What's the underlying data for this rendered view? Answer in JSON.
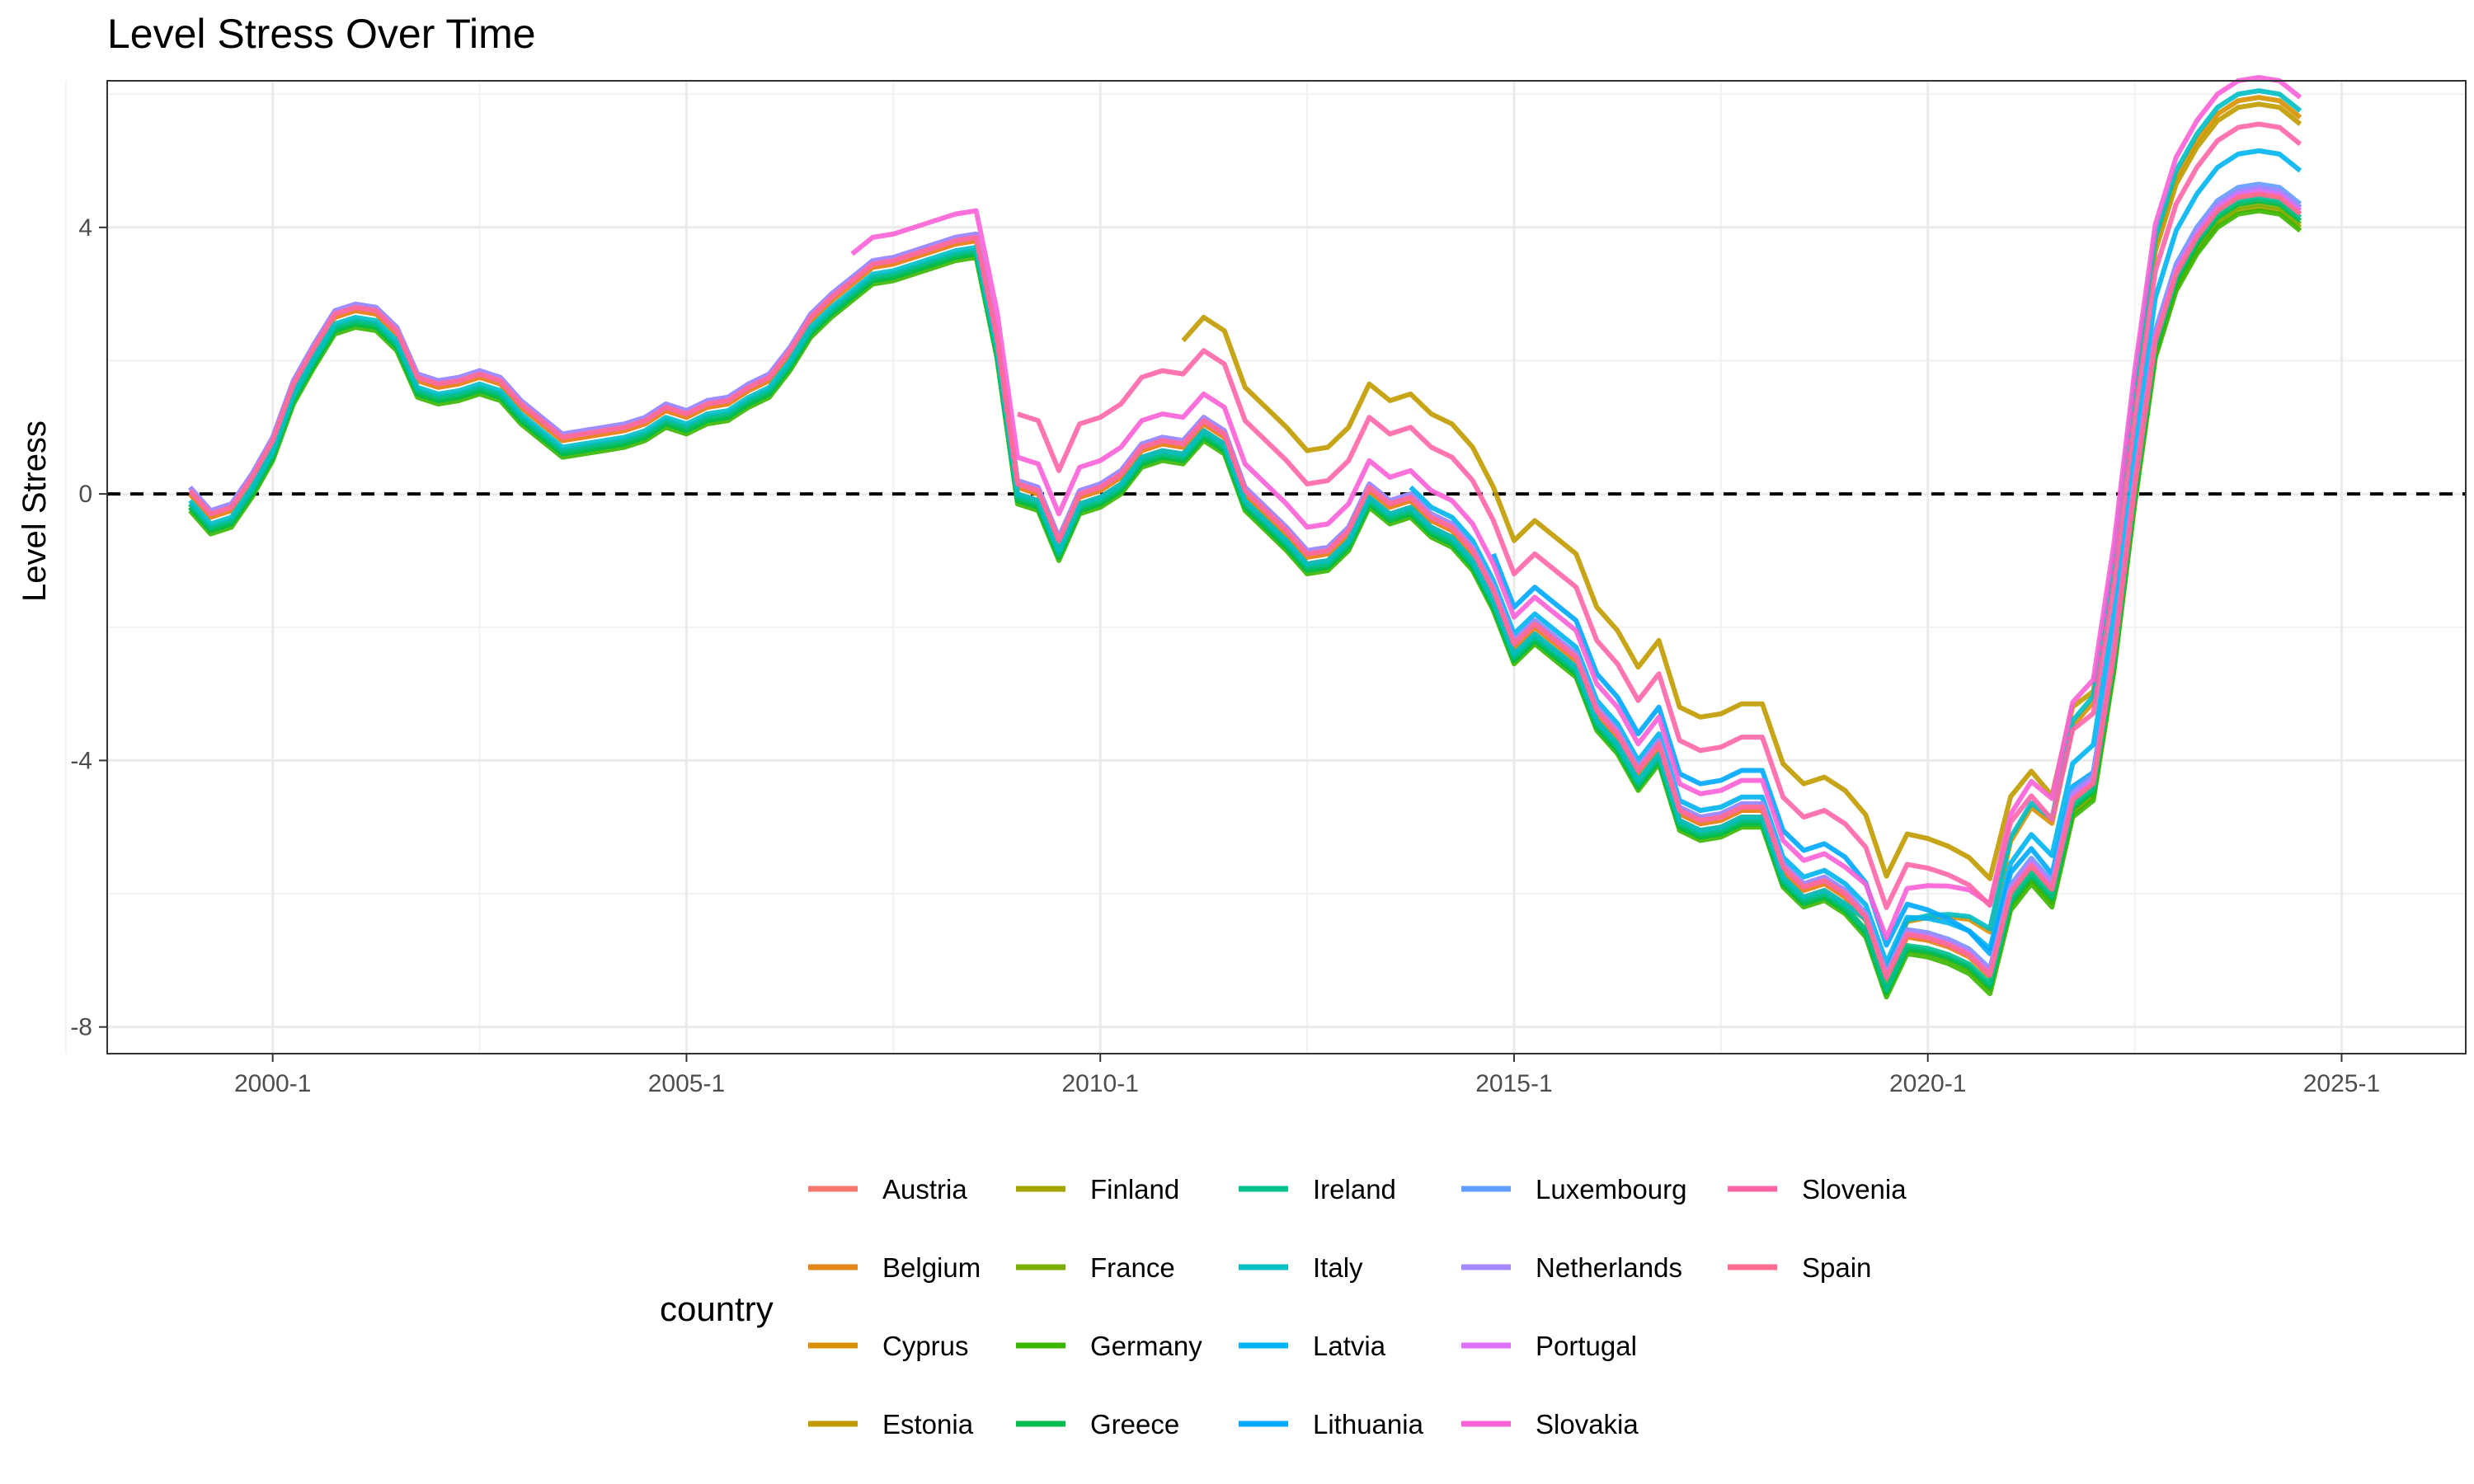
{
  "chart_data": {
    "type": "line",
    "title": "Level Stress Over Time",
    "xlabel": "",
    "ylabel": "Level Stress",
    "x_tick_labels": [
      "2000-1",
      "2005-1",
      "2010-1",
      "2015-1",
      "2020-1",
      "2025-1"
    ],
    "x_tick_values": [
      2000,
      2005,
      2010,
      2015,
      2020,
      2025
    ],
    "xlim": [
      1998.0,
      2026.5
    ],
    "y_tick_labels": [
      "4",
      "0",
      "-4",
      "-8"
    ],
    "y_tick_values": [
      4,
      0,
      -4,
      -8
    ],
    "ylim": [
      -8.4,
      6.2
    ],
    "reference_line": {
      "y": 0,
      "style": "dashed"
    },
    "grid": true,
    "legend_title": "country",
    "legend_position": "bottom",
    "base_series": [
      [
        1999.0,
        0.0
      ],
      [
        1999.25,
        -0.35
      ],
      [
        1999.5,
        -0.25
      ],
      [
        1999.75,
        0.2
      ],
      [
        2000.0,
        0.75
      ],
      [
        2000.25,
        1.6
      ],
      [
        2000.5,
        2.15
      ],
      [
        2000.75,
        2.65
      ],
      [
        2001.0,
        2.75
      ],
      [
        2001.25,
        2.7
      ],
      [
        2001.5,
        2.4
      ],
      [
        2001.75,
        1.7
      ],
      [
        2002.0,
        1.6
      ],
      [
        2002.25,
        1.65
      ],
      [
        2002.5,
        1.75
      ],
      [
        2002.75,
        1.65
      ],
      [
        2003.0,
        1.3
      ],
      [
        2003.25,
        1.05
      ],
      [
        2003.5,
        0.8
      ],
      [
        2003.75,
        0.85
      ],
      [
        2004.0,
        0.9
      ],
      [
        2004.25,
        0.95
      ],
      [
        2004.5,
        1.05
      ],
      [
        2004.75,
        1.25
      ],
      [
        2005.0,
        1.15
      ],
      [
        2005.25,
        1.3
      ],
      [
        2005.5,
        1.35
      ],
      [
        2005.75,
        1.55
      ],
      [
        2006.0,
        1.7
      ],
      [
        2006.25,
        2.1
      ],
      [
        2006.5,
        2.6
      ],
      [
        2006.75,
        2.9
      ],
      [
        2007.0,
        3.15
      ],
      [
        2007.25,
        3.4
      ],
      [
        2007.5,
        3.45
      ],
      [
        2007.75,
        3.55
      ],
      [
        2008.0,
        3.65
      ],
      [
        2008.25,
        3.75
      ],
      [
        2008.5,
        3.8
      ],
      [
        2008.75,
        2.3
      ],
      [
        2009.0,
        0.1
      ],
      [
        2009.25,
        0.0
      ],
      [
        2009.5,
        -0.75
      ],
      [
        2009.75,
        -0.05
      ],
      [
        2010.0,
        0.05
      ],
      [
        2010.25,
        0.25
      ],
      [
        2010.5,
        0.65
      ],
      [
        2010.75,
        0.75
      ],
      [
        2011.0,
        0.7
      ],
      [
        2011.25,
        1.05
      ],
      [
        2011.5,
        0.85
      ],
      [
        2011.75,
        0.0
      ],
      [
        2012.0,
        -0.3
      ],
      [
        2012.25,
        -0.6
      ],
      [
        2012.5,
        -0.95
      ],
      [
        2012.75,
        -0.9
      ],
      [
        2013.0,
        -0.6
      ],
      [
        2013.25,
        0.05
      ],
      [
        2013.5,
        -0.2
      ],
      [
        2013.75,
        -0.1
      ],
      [
        2014.0,
        -0.4
      ],
      [
        2014.25,
        -0.55
      ],
      [
        2014.5,
        -0.9
      ],
      [
        2014.75,
        -1.5
      ],
      [
        2015.0,
        -2.3
      ],
      [
        2015.25,
        -2.0
      ],
      [
        2015.5,
        -2.25
      ],
      [
        2015.75,
        -2.5
      ],
      [
        2016.0,
        -3.3
      ],
      [
        2016.25,
        -3.65
      ],
      [
        2016.5,
        -4.2
      ],
      [
        2016.75,
        -3.8
      ],
      [
        2017.0,
        -4.8
      ],
      [
        2017.25,
        -4.95
      ],
      [
        2017.5,
        -4.9
      ],
      [
        2017.75,
        -4.75
      ],
      [
        2018.0,
        -4.75
      ],
      [
        2018.25,
        -5.65
      ],
      [
        2018.5,
        -5.95
      ],
      [
        2018.75,
        -5.85
      ],
      [
        2019.0,
        -6.05
      ],
      [
        2019.25,
        -6.4
      ],
      [
        2019.5,
        -7.3
      ],
      [
        2019.75,
        -6.65
      ],
      [
        2020.0,
        -6.7
      ],
      [
        2020.25,
        -6.8
      ],
      [
        2020.5,
        -6.95
      ],
      [
        2020.75,
        -7.25
      ],
      [
        2021.0,
        -6.0
      ],
      [
        2021.25,
        -5.6
      ],
      [
        2021.5,
        -5.95
      ],
      [
        2021.75,
        -4.6
      ],
      [
        2022.0,
        -4.35
      ],
      [
        2022.25,
        -2.4
      ],
      [
        2022.5,
        0.1
      ],
      [
        2022.75,
        2.3
      ],
      [
        2023.0,
        3.3
      ],
      [
        2023.25,
        3.85
      ],
      [
        2023.5,
        4.25
      ],
      [
        2023.75,
        4.45
      ],
      [
        2024.0,
        4.5
      ],
      [
        2024.25,
        4.45
      ],
      [
        2024.5,
        4.2
      ]
    ],
    "series": [
      {
        "name": "Austria",
        "color": "#F8766D",
        "start": 1999.0,
        "offset": 0.0,
        "late_offset": 0.05
      },
      {
        "name": "Belgium",
        "color": "#E7861B",
        "start": 1999.0,
        "offset": 0.0,
        "late_offset": 0.0
      },
      {
        "name": "Cyprus",
        "color": "#D89000",
        "start": 2008.75,
        "offset": -0.1,
        "late_offset": 1.45
      },
      {
        "name": "Estonia",
        "color": "#C09B00",
        "start": 2011.0,
        "offset": 1.6,
        "late_offset": 1.35
      },
      {
        "name": "Finland",
        "color": "#A3A500",
        "start": 1999.0,
        "offset": -0.15,
        "late_offset": -0.2
      },
      {
        "name": "France",
        "color": "#7CAE00",
        "start": 1999.0,
        "offset": -0.2,
        "late_offset": -0.15
      },
      {
        "name": "Germany",
        "color": "#39B600",
        "start": 1999.0,
        "offset": -0.25,
        "late_offset": -0.25
      },
      {
        "name": "Greece",
        "color": "#00BB4E",
        "start": 1999.0,
        "offset": -0.2,
        "late_offset": -0.1
      },
      {
        "name": "Ireland",
        "color": "#00C08B",
        "start": 1999.0,
        "offset": -0.15,
        "late_offset": -0.05
      },
      {
        "name": "Italy",
        "color": "#00BFC4",
        "start": 1999.0,
        "offset": -0.1,
        "late_offset": 1.55
      },
      {
        "name": "Latvia",
        "color": "#00B4F0",
        "start": 2013.75,
        "offset": 0.2,
        "late_offset": 0.65
      },
      {
        "name": "Lithuania",
        "color": "#00A9FF",
        "start": 2014.75,
        "offset": 0.6,
        "late_offset": 0.1
      },
      {
        "name": "Luxembourg",
        "color": "#619CFF",
        "start": 1999.0,
        "offset": 0.1,
        "late_offset": 0.15
      },
      {
        "name": "Netherlands",
        "color": "#A58AFF",
        "start": 1999.0,
        "offset": 0.1,
        "late_offset": 0.1
      },
      {
        "name": "Portugal",
        "color": "#DF70F8",
        "start": 1999.0,
        "offset": 0.05,
        "late_offset": 0.05
      },
      {
        "name": "Slovakia",
        "color": "#FB61D7",
        "start": 2007.0,
        "offset": 0.45,
        "late_offset": 1.75
      },
      {
        "name": "Slovenia",
        "color": "#FF66A8",
        "start": 2009.0,
        "offset": 1.1,
        "late_offset": 1.05
      },
      {
        "name": "Spain",
        "color": "#FF6C91",
        "start": 1999.0,
        "offset": 0.05,
        "late_offset": 0.0
      }
    ]
  }
}
